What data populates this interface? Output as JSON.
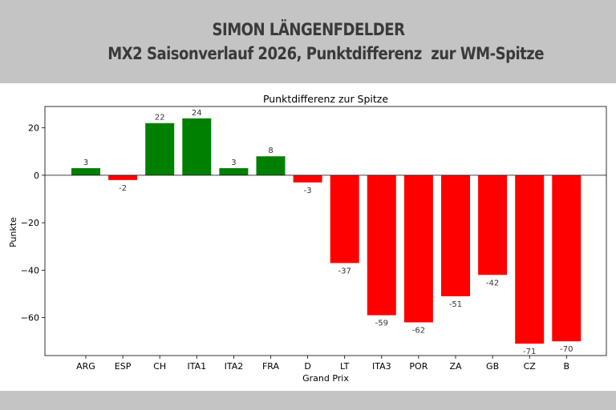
{
  "header": {
    "line1": "SIMON LÄNGENFDELDER",
    "line2": "MX2 Saisonverlauf 2026, Punktdifferenz  zur WM-Spitze"
  },
  "colors": {
    "positive": "#008000",
    "negative": "#ff0000",
    "banner": "#c4c4c4"
  },
  "chart_data": {
    "type": "bar",
    "title": "Punktdifferenz zur Spitze",
    "xlabel": "Grand Prix",
    "ylabel": "Punkte",
    "categories": [
      "ARG",
      "ESP",
      "CH",
      "ITA1",
      "ITA2",
      "FRA",
      "D",
      "LT",
      "ITA3",
      "POR",
      "ZA",
      "GB",
      "CZ",
      "B"
    ],
    "values": [
      3,
      -2,
      22,
      24,
      3,
      8,
      -3,
      -37,
      -59,
      -62,
      -51,
      -42,
      -71,
      -70
    ],
    "ylim": [
      -76,
      29
    ],
    "yticks": [
      20,
      0,
      -20,
      -40,
      -60
    ],
    "ytick_labels": [
      "20",
      "0",
      "−20",
      "−40",
      "−60"
    ],
    "grid": false,
    "legend": false
  }
}
